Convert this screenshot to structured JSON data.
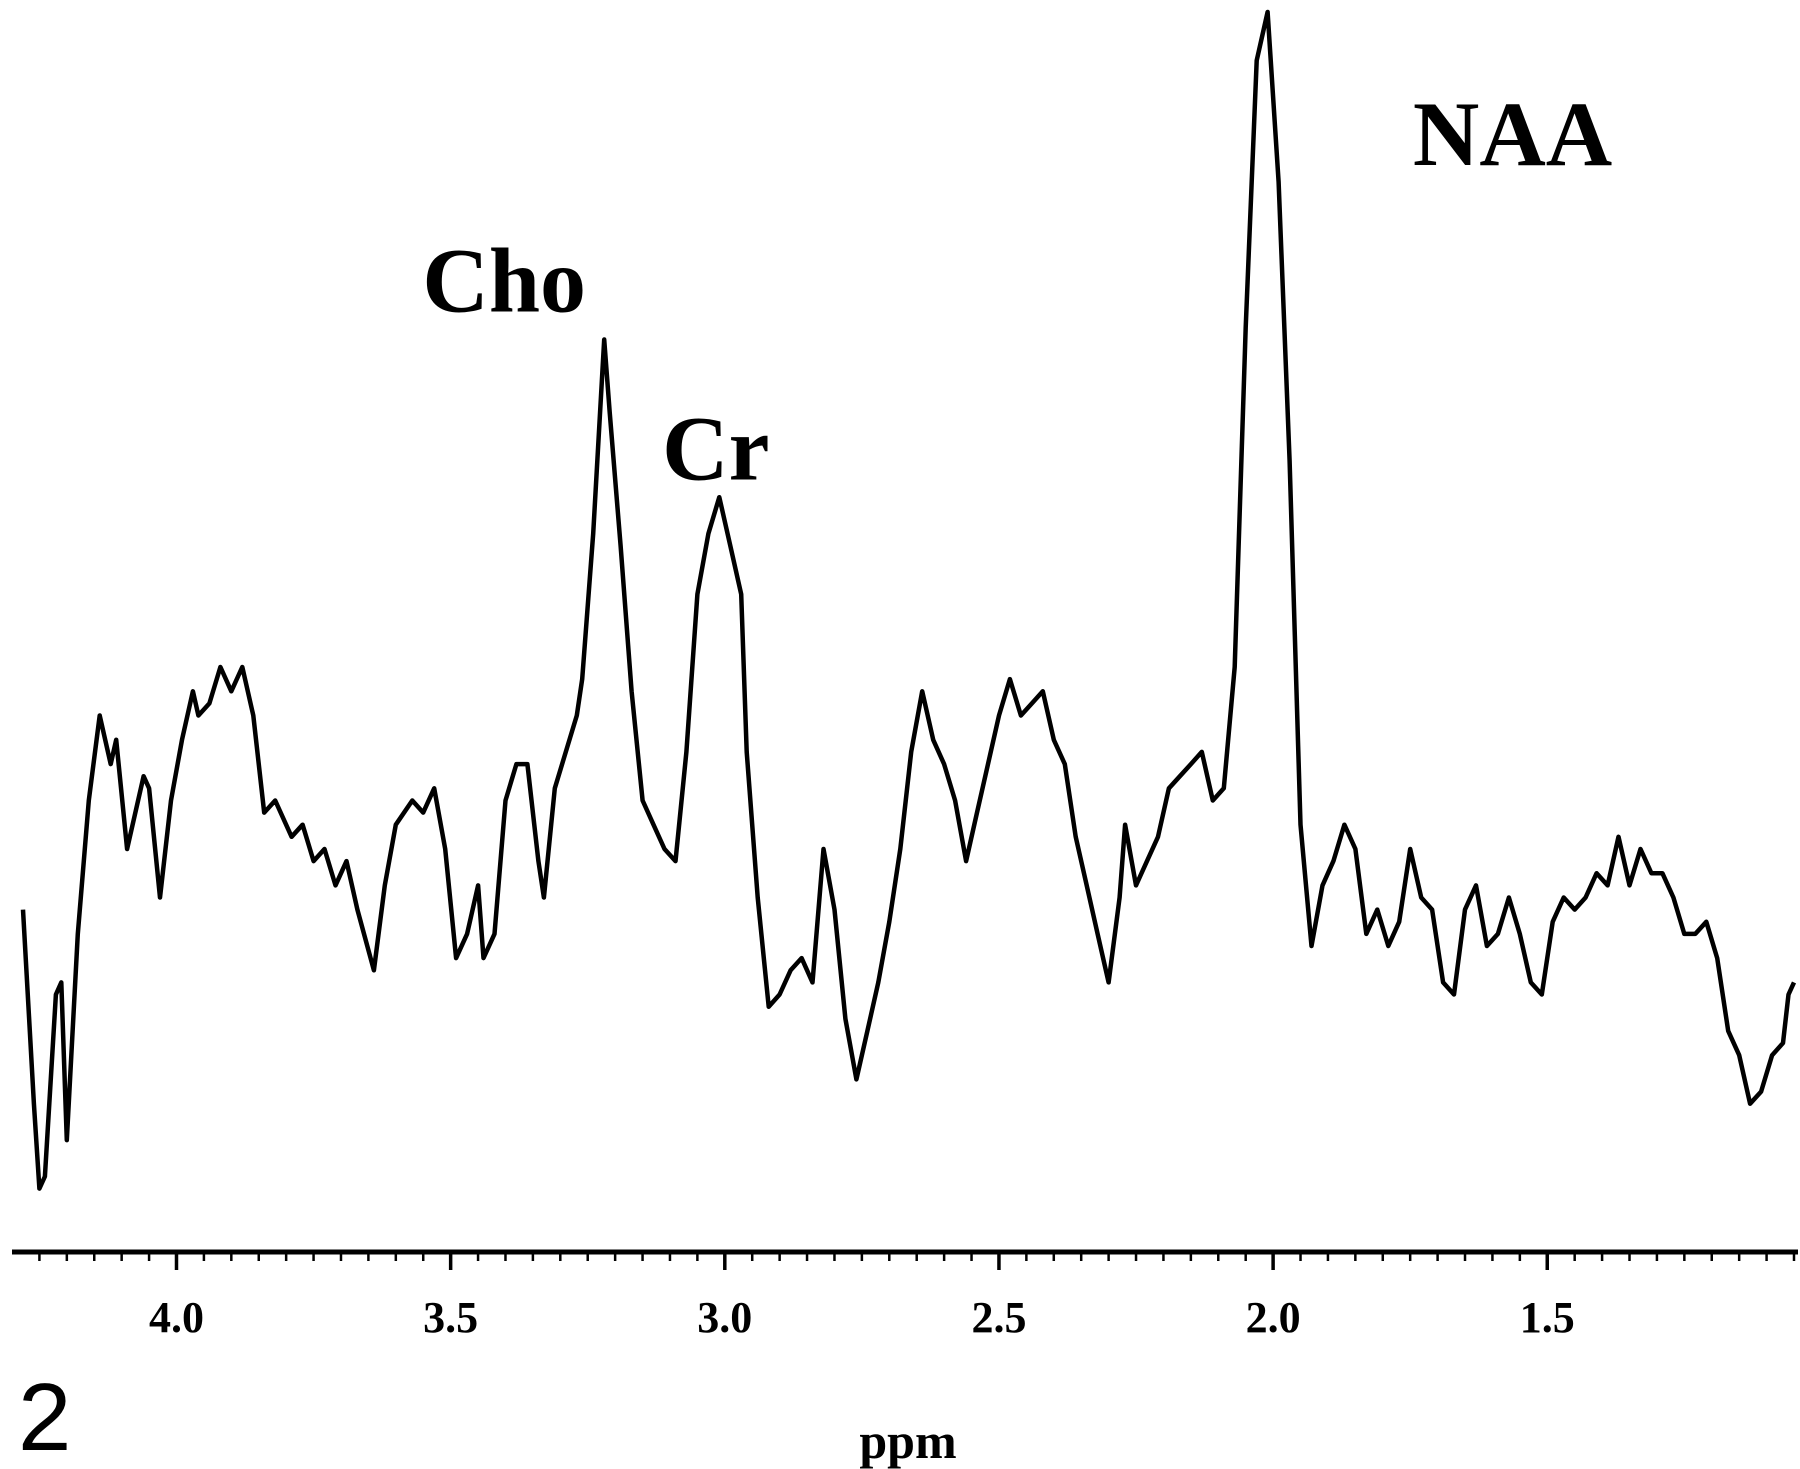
{
  "panel_label": "2",
  "chart_data": {
    "type": "line",
    "title": "",
    "xlabel": "ppm",
    "ylabel": "",
    "x_reversed": true,
    "xlim": [
      4.3,
      1.05
    ],
    "ylim": [
      0,
      1
    ],
    "xticks": [
      4.0,
      3.5,
      3.0,
      2.5,
      2.0,
      1.5
    ],
    "xtick_labels": [
      "4.0",
      "3.5",
      "3.0",
      "2.5",
      "2.0",
      "1.5"
    ],
    "grid": false,
    "annotations": [
      {
        "text": "Cho",
        "x": 3.22,
        "y": 0.73
      },
      {
        "text": "Cr",
        "x": 3.02,
        "y": 0.59
      },
      {
        "text": "NAA",
        "x": 2.01,
        "y": 1.0
      }
    ],
    "series": [
      {
        "points": [
          [
            4.28,
            0.26
          ],
          [
            4.26,
            0.1
          ],
          [
            4.25,
            0.03
          ],
          [
            4.24,
            0.04
          ],
          [
            4.22,
            0.19
          ],
          [
            4.21,
            0.2
          ],
          [
            4.2,
            0.07
          ],
          [
            4.18,
            0.24
          ],
          [
            4.16,
            0.35
          ],
          [
            4.14,
            0.42
          ],
          [
            4.12,
            0.38
          ],
          [
            4.11,
            0.4
          ],
          [
            4.09,
            0.31
          ],
          [
            4.08,
            0.33
          ],
          [
            4.06,
            0.37
          ],
          [
            4.05,
            0.36
          ],
          [
            4.03,
            0.27
          ],
          [
            4.01,
            0.35
          ],
          [
            3.99,
            0.4
          ],
          [
            3.97,
            0.44
          ],
          [
            3.96,
            0.42
          ],
          [
            3.94,
            0.43
          ],
          [
            3.92,
            0.46
          ],
          [
            3.9,
            0.44
          ],
          [
            3.88,
            0.46
          ],
          [
            3.86,
            0.42
          ],
          [
            3.84,
            0.34
          ],
          [
            3.82,
            0.35
          ],
          [
            3.79,
            0.32
          ],
          [
            3.77,
            0.33
          ],
          [
            3.75,
            0.3
          ],
          [
            3.73,
            0.31
          ],
          [
            3.71,
            0.28
          ],
          [
            3.69,
            0.3
          ],
          [
            3.67,
            0.26
          ],
          [
            3.64,
            0.21
          ],
          [
            3.62,
            0.28
          ],
          [
            3.6,
            0.33
          ],
          [
            3.57,
            0.35
          ],
          [
            3.55,
            0.34
          ],
          [
            3.53,
            0.36
          ],
          [
            3.51,
            0.31
          ],
          [
            3.49,
            0.22
          ],
          [
            3.47,
            0.24
          ],
          [
            3.45,
            0.28
          ],
          [
            3.44,
            0.22
          ],
          [
            3.42,
            0.24
          ],
          [
            3.4,
            0.35
          ],
          [
            3.38,
            0.38
          ],
          [
            3.36,
            0.38
          ],
          [
            3.34,
            0.3
          ],
          [
            3.33,
            0.27
          ],
          [
            3.31,
            0.36
          ],
          [
            3.29,
            0.39
          ],
          [
            3.27,
            0.42
          ],
          [
            3.26,
            0.45
          ],
          [
            3.24,
            0.57
          ],
          [
            3.22,
            0.73
          ],
          [
            3.21,
            0.67
          ],
          [
            3.19,
            0.56
          ],
          [
            3.17,
            0.44
          ],
          [
            3.15,
            0.35
          ],
          [
            3.13,
            0.33
          ],
          [
            3.11,
            0.31
          ],
          [
            3.09,
            0.3
          ],
          [
            3.07,
            0.39
          ],
          [
            3.05,
            0.52
          ],
          [
            3.03,
            0.57
          ],
          [
            3.01,
            0.6
          ],
          [
            2.99,
            0.56
          ],
          [
            2.97,
            0.52
          ],
          [
            2.96,
            0.39
          ],
          [
            2.94,
            0.27
          ],
          [
            2.92,
            0.18
          ],
          [
            2.9,
            0.19
          ],
          [
            2.88,
            0.21
          ],
          [
            2.86,
            0.22
          ],
          [
            2.84,
            0.2
          ],
          [
            2.82,
            0.31
          ],
          [
            2.8,
            0.26
          ],
          [
            2.78,
            0.17
          ],
          [
            2.76,
            0.12
          ],
          [
            2.74,
            0.16
          ],
          [
            2.72,
            0.2
          ],
          [
            2.7,
            0.25
          ],
          [
            2.68,
            0.31
          ],
          [
            2.66,
            0.39
          ],
          [
            2.64,
            0.44
          ],
          [
            2.62,
            0.4
          ],
          [
            2.6,
            0.38
          ],
          [
            2.58,
            0.35
          ],
          [
            2.56,
            0.3
          ],
          [
            2.54,
            0.34
          ],
          [
            2.52,
            0.38
          ],
          [
            2.5,
            0.42
          ],
          [
            2.48,
            0.45
          ],
          [
            2.46,
            0.42
          ],
          [
            2.44,
            0.43
          ],
          [
            2.42,
            0.44
          ],
          [
            2.4,
            0.4
          ],
          [
            2.38,
            0.38
          ],
          [
            2.36,
            0.32
          ],
          [
            2.34,
            0.28
          ],
          [
            2.32,
            0.24
          ],
          [
            2.3,
            0.2
          ],
          [
            2.28,
            0.27
          ],
          [
            2.27,
            0.33
          ],
          [
            2.25,
            0.28
          ],
          [
            2.23,
            0.3
          ],
          [
            2.21,
            0.32
          ],
          [
            2.19,
            0.36
          ],
          [
            2.17,
            0.37
          ],
          [
            2.15,
            0.38
          ],
          [
            2.13,
            0.39
          ],
          [
            2.11,
            0.35
          ],
          [
            2.09,
            0.36
          ],
          [
            2.07,
            0.46
          ],
          [
            2.05,
            0.74
          ],
          [
            2.03,
            0.96
          ],
          [
            2.01,
            1.0
          ],
          [
            1.99,
            0.86
          ],
          [
            1.97,
            0.63
          ],
          [
            1.95,
            0.33
          ],
          [
            1.93,
            0.23
          ],
          [
            1.91,
            0.28
          ],
          [
            1.89,
            0.3
          ],
          [
            1.87,
            0.33
          ],
          [
            1.85,
            0.31
          ],
          [
            1.83,
            0.24
          ],
          [
            1.81,
            0.26
          ],
          [
            1.79,
            0.23
          ],
          [
            1.77,
            0.25
          ],
          [
            1.75,
            0.31
          ],
          [
            1.73,
            0.27
          ],
          [
            1.71,
            0.26
          ],
          [
            1.69,
            0.2
          ],
          [
            1.67,
            0.19
          ],
          [
            1.65,
            0.26
          ],
          [
            1.63,
            0.28
          ],
          [
            1.61,
            0.23
          ],
          [
            1.59,
            0.24
          ],
          [
            1.57,
            0.27
          ],
          [
            1.55,
            0.24
          ],
          [
            1.53,
            0.2
          ],
          [
            1.51,
            0.19
          ],
          [
            1.49,
            0.25
          ],
          [
            1.47,
            0.27
          ],
          [
            1.45,
            0.26
          ],
          [
            1.43,
            0.27
          ],
          [
            1.41,
            0.29
          ],
          [
            1.39,
            0.28
          ],
          [
            1.37,
            0.32
          ],
          [
            1.35,
            0.28
          ],
          [
            1.33,
            0.31
          ],
          [
            1.31,
            0.29
          ],
          [
            1.29,
            0.29
          ],
          [
            1.27,
            0.27
          ],
          [
            1.25,
            0.24
          ],
          [
            1.23,
            0.24
          ],
          [
            1.21,
            0.25
          ],
          [
            1.19,
            0.22
          ],
          [
            1.17,
            0.16
          ],
          [
            1.15,
            0.14
          ],
          [
            1.13,
            0.1
          ],
          [
            1.11,
            0.11
          ],
          [
            1.09,
            0.14
          ],
          [
            1.07,
            0.15
          ],
          [
            1.06,
            0.19
          ],
          [
            1.05,
            0.2
          ]
        ]
      }
    ]
  }
}
